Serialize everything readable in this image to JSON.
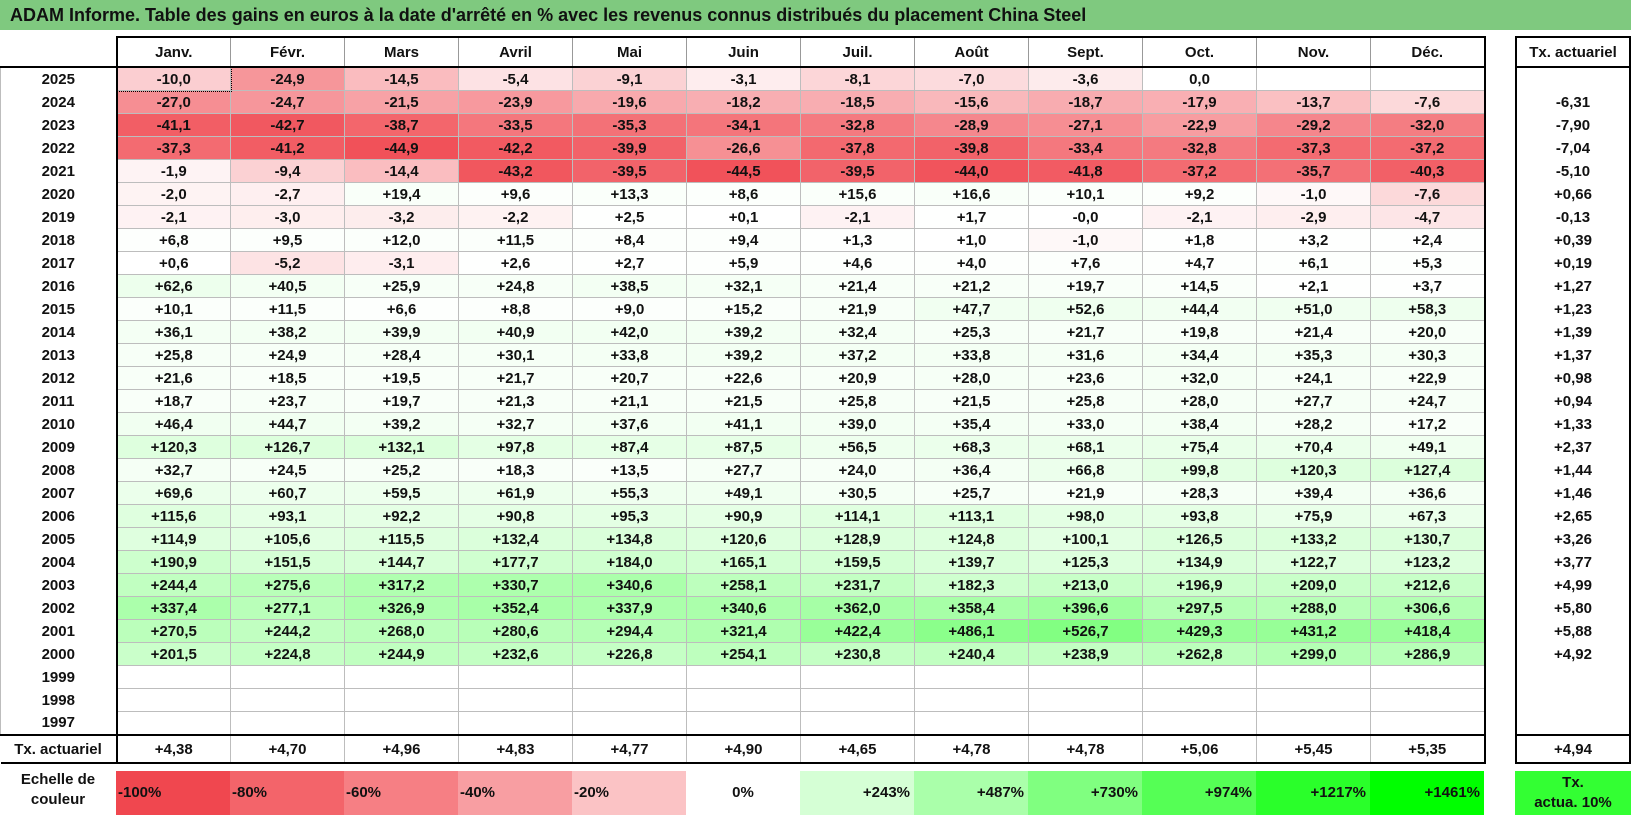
{
  "title": "ADAM Informe. Table des gains en euros à la date d'arrêté en % avec les revenus connus distribués du placement China Steel",
  "months": [
    "Janv.",
    "Févr.",
    "Mars",
    "Avril",
    "Mai",
    "Juin",
    "Juil.",
    "Août",
    "Sept.",
    "Oct.",
    "Nov.",
    "Déc."
  ],
  "side_header": "Tx. actuariel",
  "rows": [
    {
      "year": "2025",
      "values": [
        "-10,0",
        "-24,9",
        "-14,5",
        "-5,4",
        "-9,1",
        "-3,1",
        "-8,1",
        "-7,0",
        "-3,6",
        "0,0",
        "",
        ""
      ],
      "rate": ""
    },
    {
      "year": "2024",
      "values": [
        "-27,0",
        "-24,7",
        "-21,5",
        "-23,9",
        "-19,6",
        "-18,2",
        "-18,5",
        "-15,6",
        "-18,7",
        "-17,9",
        "-13,7",
        "-7,6"
      ],
      "rate": "-6,31"
    },
    {
      "year": "2023",
      "values": [
        "-41,1",
        "-42,7",
        "-38,7",
        "-33,5",
        "-35,3",
        "-34,1",
        "-32,8",
        "-28,9",
        "-27,1",
        "-22,9",
        "-29,2",
        "-32,0"
      ],
      "rate": "-7,90"
    },
    {
      "year": "2022",
      "values": [
        "-37,3",
        "-41,2",
        "-44,9",
        "-42,2",
        "-39,9",
        "-26,6",
        "-37,8",
        "-39,8",
        "-33,4",
        "-32,8",
        "-37,3",
        "-37,2"
      ],
      "rate": "-7,04"
    },
    {
      "year": "2021",
      "values": [
        "-1,9",
        "-9,4",
        "-14,4",
        "-43,2",
        "-39,5",
        "-44,5",
        "-39,5",
        "-44,0",
        "-41,8",
        "-37,2",
        "-35,7",
        "-40,3"
      ],
      "rate": "-5,10"
    },
    {
      "year": "2020",
      "values": [
        "-2,0",
        "-2,7",
        "+19,4",
        "+9,6",
        "+13,3",
        "+8,6",
        "+15,6",
        "+16,6",
        "+10,1",
        "+9,2",
        "-1,0",
        "-7,6"
      ],
      "rate": "+0,66"
    },
    {
      "year": "2019",
      "values": [
        "-2,1",
        "-3,0",
        "-3,2",
        "-2,2",
        "+2,5",
        "+0,1",
        "-2,1",
        "+1,7",
        "-0,0",
        "-2,1",
        "-2,9",
        "-4,7"
      ],
      "rate": "-0,13"
    },
    {
      "year": "2018",
      "values": [
        "+6,8",
        "+9,5",
        "+12,0",
        "+11,5",
        "+8,4",
        "+9,4",
        "+1,3",
        "+1,0",
        "-1,0",
        "+1,8",
        "+3,2",
        "+2,4"
      ],
      "rate": "+0,39"
    },
    {
      "year": "2017",
      "values": [
        "+0,6",
        "-5,2",
        "-3,1",
        "+2,6",
        "+2,7",
        "+5,9",
        "+4,6",
        "+4,0",
        "+7,6",
        "+4,7",
        "+6,1",
        "+5,3"
      ],
      "rate": "+0,19"
    },
    {
      "year": "2016",
      "values": [
        "+62,6",
        "+40,5",
        "+25,9",
        "+24,8",
        "+38,5",
        "+32,1",
        "+21,4",
        "+21,2",
        "+19,7",
        "+14,5",
        "+2,1",
        "+3,7"
      ],
      "rate": "+1,27"
    },
    {
      "year": "2015",
      "values": [
        "+10,1",
        "+11,5",
        "+6,6",
        "+8,8",
        "+9,0",
        "+15,2",
        "+21,9",
        "+47,7",
        "+52,6",
        "+44,4",
        "+51,0",
        "+58,3"
      ],
      "rate": "+1,23"
    },
    {
      "year": "2014",
      "values": [
        "+36,1",
        "+38,2",
        "+39,9",
        "+40,9",
        "+42,0",
        "+39,2",
        "+32,4",
        "+25,3",
        "+21,7",
        "+19,8",
        "+21,4",
        "+20,0"
      ],
      "rate": "+1,39"
    },
    {
      "year": "2013",
      "values": [
        "+25,8",
        "+24,9",
        "+28,4",
        "+30,1",
        "+33,8",
        "+39,2",
        "+37,2",
        "+33,8",
        "+31,6",
        "+34,4",
        "+35,3",
        "+30,3"
      ],
      "rate": "+1,37"
    },
    {
      "year": "2012",
      "values": [
        "+21,6",
        "+18,5",
        "+19,5",
        "+21,7",
        "+20,7",
        "+22,6",
        "+20,9",
        "+28,0",
        "+23,6",
        "+32,0",
        "+24,1",
        "+22,9"
      ],
      "rate": "+0,98"
    },
    {
      "year": "2011",
      "values": [
        "+18,7",
        "+23,7",
        "+19,7",
        "+21,3",
        "+21,1",
        "+21,5",
        "+25,8",
        "+21,5",
        "+25,8",
        "+28,0",
        "+27,7",
        "+24,7"
      ],
      "rate": "+0,94"
    },
    {
      "year": "2010",
      "values": [
        "+46,4",
        "+44,7",
        "+39,2",
        "+32,7",
        "+37,6",
        "+41,1",
        "+39,0",
        "+35,4",
        "+33,0",
        "+38,4",
        "+28,2",
        "+17,2"
      ],
      "rate": "+1,33"
    },
    {
      "year": "2009",
      "values": [
        "+120,3",
        "+126,7",
        "+132,1",
        "+97,8",
        "+87,4",
        "+87,5",
        "+56,5",
        "+68,3",
        "+68,1",
        "+75,4",
        "+70,4",
        "+49,1"
      ],
      "rate": "+2,37"
    },
    {
      "year": "2008",
      "values": [
        "+32,7",
        "+24,5",
        "+25,2",
        "+18,3",
        "+13,5",
        "+27,7",
        "+24,0",
        "+36,4",
        "+66,8",
        "+99,8",
        "+120,3",
        "+127,4"
      ],
      "rate": "+1,44"
    },
    {
      "year": "2007",
      "values": [
        "+69,6",
        "+60,7",
        "+59,5",
        "+61,9",
        "+55,3",
        "+49,1",
        "+30,5",
        "+25,7",
        "+21,9",
        "+28,3",
        "+39,4",
        "+36,6"
      ],
      "rate": "+1,46"
    },
    {
      "year": "2006",
      "values": [
        "+115,6",
        "+93,1",
        "+92,2",
        "+90,8",
        "+95,3",
        "+90,9",
        "+114,1",
        "+113,1",
        "+98,0",
        "+93,8",
        "+75,9",
        "+67,3"
      ],
      "rate": "+2,65"
    },
    {
      "year": "2005",
      "values": [
        "+114,9",
        "+105,6",
        "+115,5",
        "+132,4",
        "+134,8",
        "+120,6",
        "+128,9",
        "+124,8",
        "+100,1",
        "+126,5",
        "+133,2",
        "+130,7"
      ],
      "rate": "+3,26"
    },
    {
      "year": "2004",
      "values": [
        "+190,9",
        "+151,5",
        "+144,7",
        "+177,7",
        "+184,0",
        "+165,1",
        "+159,5",
        "+139,7",
        "+125,3",
        "+134,9",
        "+122,7",
        "+123,2"
      ],
      "rate": "+3,77"
    },
    {
      "year": "2003",
      "values": [
        "+244,4",
        "+275,6",
        "+317,2",
        "+330,7",
        "+340,6",
        "+258,1",
        "+231,7",
        "+182,3",
        "+213,0",
        "+196,9",
        "+209,0",
        "+212,6"
      ],
      "rate": "+4,99"
    },
    {
      "year": "2002",
      "values": [
        "+337,4",
        "+277,1",
        "+326,9",
        "+352,4",
        "+337,9",
        "+340,6",
        "+362,0",
        "+358,4",
        "+396,6",
        "+297,5",
        "+288,0",
        "+306,6"
      ],
      "rate": "+5,80"
    },
    {
      "year": "2001",
      "values": [
        "+270,5",
        "+244,2",
        "+268,0",
        "+280,6",
        "+294,4",
        "+321,4",
        "+422,4",
        "+486,1",
        "+526,7",
        "+429,3",
        "+431,2",
        "+418,4"
      ],
      "rate": "+5,88"
    },
    {
      "year": "2000",
      "values": [
        "+201,5",
        "+224,8",
        "+244,9",
        "+232,6",
        "+226,8",
        "+254,1",
        "+230,8",
        "+240,4",
        "+238,9",
        "+262,8",
        "+299,0",
        "+286,9"
      ],
      "rate": "+4,92"
    },
    {
      "year": "1999",
      "values": [
        "",
        "",
        "",
        "",
        "",
        "",
        "",
        "",
        "",
        "",
        "",
        ""
      ],
      "rate": ""
    },
    {
      "year": "1998",
      "values": [
        "",
        "",
        "",
        "",
        "",
        "",
        "",
        "",
        "",
        "",
        "",
        ""
      ],
      "rate": ""
    },
    {
      "year": "1997",
      "values": [
        "",
        "",
        "",
        "",
        "",
        "",
        "",
        "",
        "",
        "",
        "",
        ""
      ],
      "rate": ""
    }
  ],
  "footer": {
    "label": "Tx. actuariel",
    "values": [
      "+4,38",
      "+4,70",
      "+4,96",
      "+4,83",
      "+4,77",
      "+4,90",
      "+4,65",
      "+4,78",
      "+4,78",
      "+5,06",
      "+5,45",
      "+5,35"
    ],
    "side": "+4,94"
  },
  "scale": {
    "label_line1": "Echelle de",
    "label_line2": "couleur",
    "swatches": [
      {
        "label": "-100%",
        "color": "#f0474f",
        "align": "left"
      },
      {
        "label": "-80%",
        "color": "#f3646a",
        "align": "left"
      },
      {
        "label": "-60%",
        "color": "#f67f84",
        "align": "left"
      },
      {
        "label": "-40%",
        "color": "#f89ea2",
        "align": "left"
      },
      {
        "label": "-20%",
        "color": "#fbc3c5",
        "align": "left"
      },
      {
        "label": "0%",
        "color": "#ffffff",
        "align": "center"
      },
      {
        "label": "+243%",
        "color": "#d5ffd5",
        "align": "right"
      },
      {
        "label": "+487%",
        "color": "#aaffaa",
        "align": "right"
      },
      {
        "label": "+730%",
        "color": "#80ff80",
        "align": "right"
      },
      {
        "label": "+974%",
        "color": "#55ff55",
        "align": "right"
      },
      {
        "label": "+1217%",
        "color": "#2aff2a",
        "align": "right"
      },
      {
        "label": "+1461%",
        "color": "#00ff00",
        "align": "right"
      }
    ],
    "side_line1": "Tx.",
    "side_line2": "actua. 10%"
  },
  "colors": {
    "title_bg": "#7fc97f",
    "neg_max": "#f0474f",
    "pos_max": "#00ff00"
  }
}
